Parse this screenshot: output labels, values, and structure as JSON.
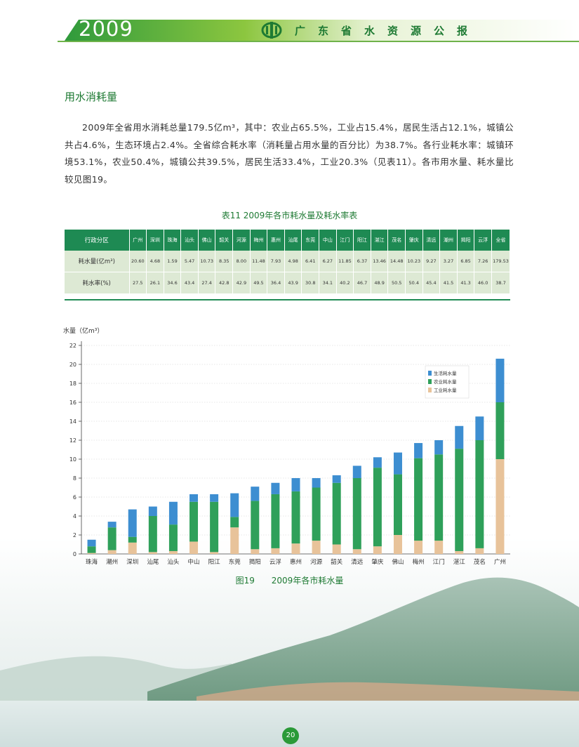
{
  "header": {
    "year": "2009",
    "title": "广东省水资源公报"
  },
  "section": {
    "title": "用水消耗量",
    "paragraph": "2009年全省用水消耗总量179.5亿m³，其中：农业占65.5%，工业占15.4%，居民生活占12.1%，城镇公共占4.6%，生态环境占2.4%。全省综合耗水率（消耗量占用水量的百分比）为38.7%。各行业耗水率：城镇环境53.1%，农业50.4%，城镇公共39.5%，居民生活33.4%，工业20.3%（见表11）。各市用水量、耗水量比较见图19。"
  },
  "table11": {
    "title": "表11   2009年各市耗水量及耗水率表",
    "header_label": "行政分区",
    "columns": [
      "广州",
      "深圳",
      "珠海",
      "汕头",
      "佛山",
      "韶关",
      "河源",
      "梅州",
      "惠州",
      "汕尾",
      "东莞",
      "中山",
      "江门",
      "阳江",
      "湛江",
      "茂名",
      "肇庆",
      "清远",
      "潮州",
      "揭阳",
      "云浮",
      "全省"
    ],
    "rows": [
      {
        "label": "耗水量(亿m³)",
        "values": [
          "20.60",
          "4.68",
          "1.59",
          "5.47",
          "10.73",
          "8.35",
          "8.00",
          "11.48",
          "7.93",
          "4.98",
          "6.41",
          "6.27",
          "11.85",
          "6.37",
          "13.46",
          "14.48",
          "10.23",
          "9.27",
          "3.27",
          "6.85",
          "7.26",
          "179.53"
        ]
      },
      {
        "label": "耗水率(%)",
        "values": [
          "27.5",
          "26.1",
          "34.6",
          "43.4",
          "27.4",
          "42.8",
          "42.9",
          "49.5",
          "36.4",
          "43.9",
          "30.8",
          "34.1",
          "40.2",
          "46.7",
          "48.9",
          "50.5",
          "50.4",
          "45.4",
          "41.5",
          "41.3",
          "46.0",
          "38.7"
        ]
      }
    ]
  },
  "chart_data": {
    "type": "bar",
    "stacked": true,
    "title": "",
    "ylabel": "水量（亿m³）",
    "xlabel": "",
    "ylim": [
      0,
      22
    ],
    "yticks": [
      0,
      2,
      4,
      6,
      8,
      10,
      12,
      14,
      16,
      18,
      20,
      22
    ],
    "grid": true,
    "legend_position": "top-right",
    "categories": [
      "珠海",
      "潮州",
      "深圳",
      "汕尾",
      "汕头",
      "中山",
      "阳江",
      "东莞",
      "揭阳",
      "云浮",
      "惠州",
      "河源",
      "韶关",
      "清远",
      "肇庆",
      "佛山",
      "梅州",
      "江门",
      "湛江",
      "茂名",
      "广州"
    ],
    "series": [
      {
        "name": "工业耗水量",
        "color": "#e8c39a",
        "values": [
          0.1,
          0.4,
          1.2,
          0.2,
          0.3,
          1.3,
          0.2,
          2.8,
          0.5,
          0.6,
          1.1,
          1.4,
          1.0,
          0.5,
          0.8,
          2.0,
          1.4,
          1.4,
          0.3,
          0.6,
          10.0
        ]
      },
      {
        "name": "农业耗水量",
        "color": "#2fa05a",
        "values": [
          0.7,
          2.4,
          0.6,
          3.8,
          2.8,
          4.2,
          5.3,
          1.1,
          5.1,
          5.7,
          5.5,
          5.6,
          6.5,
          7.5,
          8.3,
          6.4,
          8.7,
          9.1,
          10.8,
          11.4,
          6.0
        ]
      },
      {
        "name": "生活耗水量",
        "color": "#3d8ed1",
        "values": [
          0.7,
          0.6,
          2.9,
          1.0,
          2.4,
          0.8,
          0.8,
          2.5,
          1.5,
          1.2,
          1.4,
          1.0,
          0.8,
          1.3,
          1.1,
          2.3,
          1.6,
          1.5,
          2.4,
          2.5,
          4.6
        ]
      }
    ]
  },
  "figure": {
    "caption_num": "图19",
    "caption_text": "2009年各市耗水量"
  },
  "page_number": "20"
}
